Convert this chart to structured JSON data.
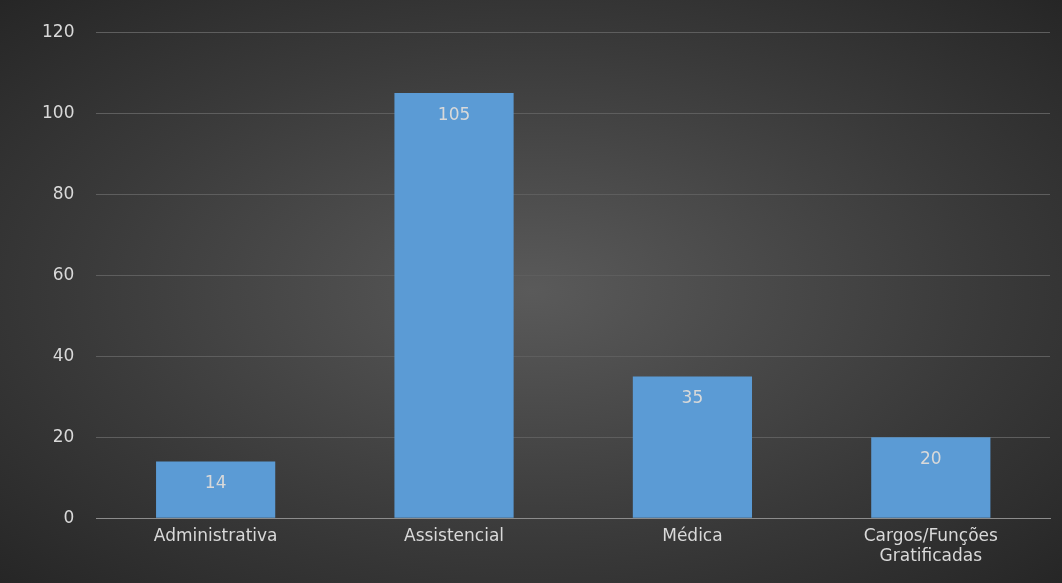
{
  "chart_data": {
    "type": "bar",
    "categories": [
      "Administrativa",
      "Assistencial",
      "Médica",
      "Cargos/Funções Gratificadas"
    ],
    "values": [
      14,
      105,
      35,
      20
    ],
    "color": "#5b9bd5",
    "ylim": [
      0,
      120
    ],
    "yticks": [
      0,
      20,
      40,
      60,
      80,
      100,
      120
    ],
    "grid": "y",
    "data_labels": true,
    "legend": false
  }
}
